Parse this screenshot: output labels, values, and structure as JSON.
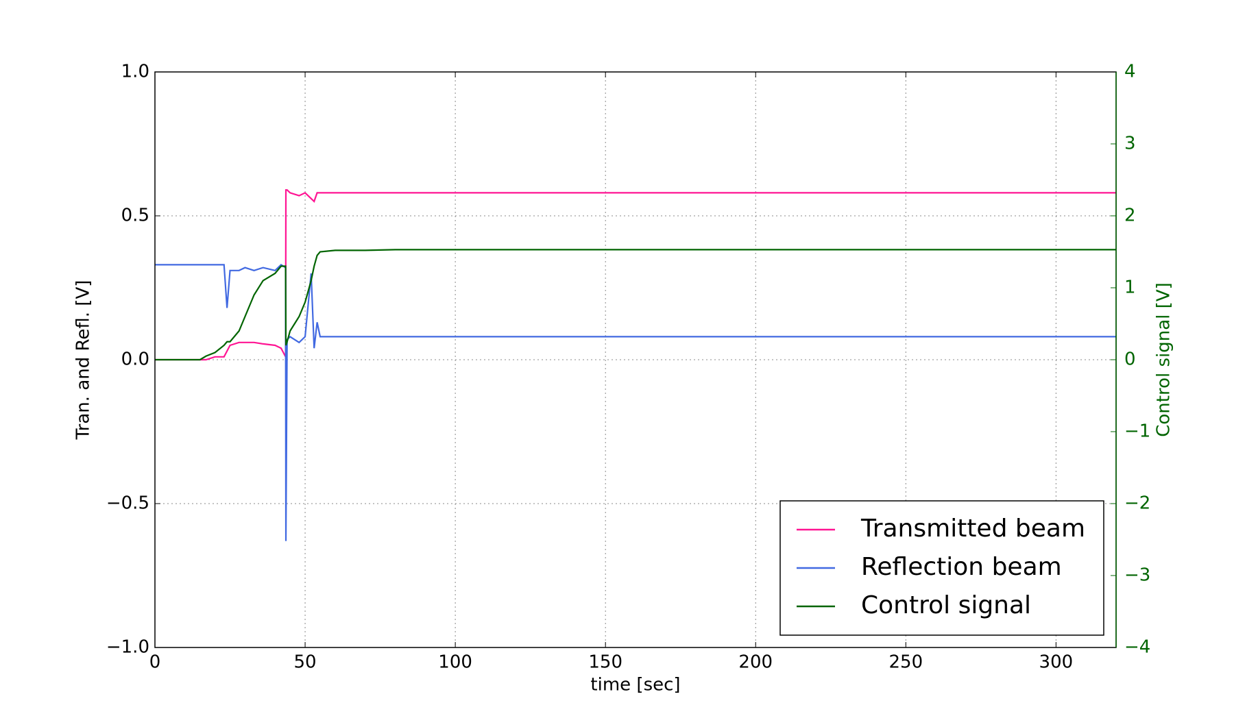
{
  "chart_data": {
    "type": "line",
    "x_label": "time [sec]",
    "y_label": "Tran. and Refl. [V]",
    "y2_label": "Control signal [V]",
    "x": [
      0,
      15,
      17,
      20,
      23,
      24,
      25,
      28,
      30,
      33,
      36,
      40,
      42,
      43.5,
      43.6,
      44,
      45,
      48,
      50,
      52,
      53,
      54,
      55,
      60,
      70,
      80,
      100,
      150,
      200,
      250,
      300,
      320
    ],
    "series": [
      {
        "name": "Transmitted beam",
        "color": "#ff1493",
        "axis": "y",
        "values": [
          0.0,
          0.0,
          0.0,
          0.01,
          0.01,
          0.03,
          0.05,
          0.06,
          0.06,
          0.06,
          0.055,
          0.05,
          0.04,
          0.01,
          0.59,
          0.59,
          0.58,
          0.57,
          0.58,
          0.56,
          0.55,
          0.58,
          0.58,
          0.58,
          0.58,
          0.58,
          0.58,
          0.58,
          0.58,
          0.58,
          0.58,
          0.58
        ]
      },
      {
        "name": "Reflection beam",
        "color": "#4169e1",
        "axis": "y",
        "values": [
          0.33,
          0.33,
          0.33,
          0.33,
          0.33,
          0.18,
          0.31,
          0.31,
          0.32,
          0.31,
          0.32,
          0.31,
          0.33,
          0.32,
          -0.63,
          0.07,
          0.08,
          0.06,
          0.08,
          0.3,
          0.04,
          0.13,
          0.08,
          0.08,
          0.08,
          0.08,
          0.08,
          0.08,
          0.08,
          0.08,
          0.08,
          0.08
        ]
      },
      {
        "name": "Control signal",
        "color": "#006400",
        "axis": "y2",
        "values": [
          0,
          0,
          0.05,
          0.1,
          0.2,
          0.25,
          0.25,
          0.4,
          0.6,
          0.9,
          1.1,
          1.2,
          1.3,
          1.3,
          0.2,
          0.25,
          0.4,
          0.6,
          0.8,
          1.1,
          1.3,
          1.45,
          1.5,
          1.52,
          1.52,
          1.53,
          1.53,
          1.53,
          1.53,
          1.53,
          1.53,
          1.53
        ]
      }
    ],
    "xlim": [
      0,
      320
    ],
    "xticks": [
      0,
      50,
      100,
      150,
      200,
      250,
      300
    ],
    "ylim": [
      -1,
      1
    ],
    "yticks": [
      {
        "value": -1,
        "label": "−1.0"
      },
      {
        "value": -0.5,
        "label": "−0.5"
      },
      {
        "value": 0,
        "label": "0.0"
      },
      0.5,
      {
        "value": 1,
        "label": "1.0"
      }
    ],
    "y2lim": [
      -4,
      4
    ],
    "y2ticks": [
      {
        "value": -4,
        "label": "−4"
      },
      {
        "value": -3,
        "label": "−3"
      },
      {
        "value": -2,
        "label": "−2"
      },
      {
        "value": -1,
        "label": "−1"
      },
      0,
      1,
      2,
      3,
      4
    ],
    "y2_color": "#006400",
    "grid": true,
    "legend": "lower right"
  }
}
